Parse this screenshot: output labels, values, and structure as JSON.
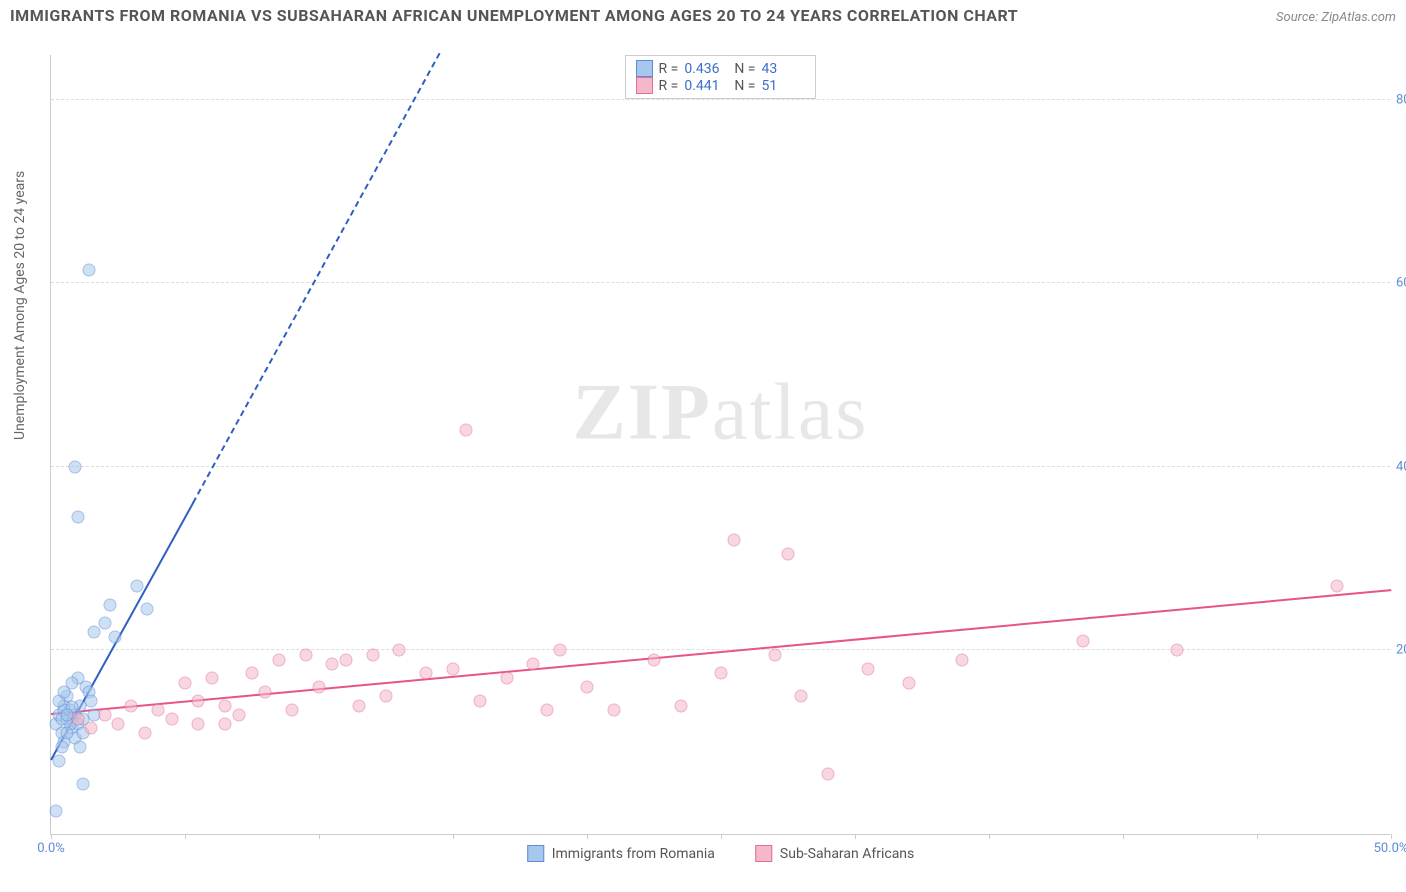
{
  "header": {
    "title": "IMMIGRANTS FROM ROMANIA VS SUBSAHARAN AFRICAN UNEMPLOYMENT AMONG AGES 20 TO 24 YEARS CORRELATION CHART",
    "source": "Source: ZipAtlas.com"
  },
  "watermark": {
    "part1": "ZIP",
    "part2": "atlas"
  },
  "chart": {
    "type": "scatter",
    "xlim": [
      0,
      50
    ],
    "ylim": [
      0,
      85
    ],
    "x_ticks": [
      0,
      5,
      10,
      15,
      20,
      25,
      30,
      35,
      40,
      45,
      50
    ],
    "x_tick_labels": {
      "0": "0.0%",
      "50": "50.0%"
    },
    "y_ticks": [
      20,
      40,
      60,
      80
    ],
    "y_tick_labels": {
      "20": "20.0%",
      "40": "40.0%",
      "60": "60.0%",
      "80": "80.0%"
    },
    "y_axis_label": "Unemployment Among Ages 20 to 24 years",
    "background_color": "#ffffff",
    "grid_color": "#dddddd",
    "axis_color": "#cccccc",
    "tick_label_color": "#5b8dd6",
    "point_radius": 6.5,
    "point_stroke_width": 1.2,
    "series": [
      {
        "key": "romania",
        "label": "Immigrants from Romania",
        "fill": "#a7c7ec",
        "stroke": "#5b8dd6",
        "fill_opacity": 0.55,
        "R": "0.436",
        "N": "43",
        "trend": {
          "x1": 0,
          "y1": 8,
          "x2": 5.3,
          "y2": 36,
          "color": "#2f5fc0",
          "width": 2,
          "dash_x2": 14.5,
          "dash_y2": 85
        },
        "points": [
          [
            0.2,
            12
          ],
          [
            0.3,
            13
          ],
          [
            0.4,
            11
          ],
          [
            0.5,
            14
          ],
          [
            0.6,
            12.5
          ],
          [
            0.5,
            10
          ],
          [
            0.7,
            13.5
          ],
          [
            0.8,
            11.5
          ],
          [
            0.9,
            13
          ],
          [
            1.0,
            12
          ],
          [
            0.6,
            15
          ],
          [
            1.1,
            14
          ],
          [
            1.2,
            12.5
          ],
          [
            0.4,
            9.5
          ],
          [
            0.3,
            8
          ],
          [
            1.3,
            16
          ],
          [
            1.4,
            15.5
          ],
          [
            1.0,
            17
          ],
          [
            1.5,
            14.5
          ],
          [
            0.8,
            16.5
          ],
          [
            1.6,
            13
          ],
          [
            0.2,
            2.5
          ],
          [
            1.2,
            5.5
          ],
          [
            1.6,
            22
          ],
          [
            2.0,
            23
          ],
          [
            2.2,
            25
          ],
          [
            2.4,
            21.5
          ],
          [
            3.2,
            27
          ],
          [
            3.6,
            24.5
          ],
          [
            1.0,
            34.5
          ],
          [
            0.9,
            40
          ],
          [
            1.4,
            61.5
          ],
          [
            0.7,
            12
          ],
          [
            0.9,
            10.5
          ],
          [
            0.5,
            13.5
          ],
          [
            1.1,
            9.5
          ],
          [
            0.6,
            11
          ],
          [
            0.3,
            14.5
          ],
          [
            0.4,
            12.5
          ],
          [
            0.8,
            13.8
          ],
          [
            0.5,
            15.5
          ],
          [
            1.2,
            11
          ],
          [
            0.6,
            13
          ]
        ]
      },
      {
        "key": "subsaharan",
        "label": "Sub-Saharan Africans",
        "fill": "#f4b8c9",
        "stroke": "#e36f97",
        "fill_opacity": 0.55,
        "R": "0.441",
        "N": "51",
        "trend": {
          "x1": 0,
          "y1": 13,
          "x2": 50,
          "y2": 26.5,
          "color": "#e7548a",
          "width": 2
        },
        "points": [
          [
            1.0,
            12.5
          ],
          [
            1.5,
            11.5
          ],
          [
            2.0,
            13
          ],
          [
            2.5,
            12
          ],
          [
            3.0,
            14
          ],
          [
            3.5,
            11
          ],
          [
            4.0,
            13.5
          ],
          [
            4.5,
            12.5
          ],
          [
            5.0,
            16.5
          ],
          [
            5.5,
            12
          ],
          [
            6.0,
            17
          ],
          [
            6.5,
            14
          ],
          [
            7.0,
            13
          ],
          [
            7.5,
            17.5
          ],
          [
            8.0,
            15.5
          ],
          [
            8.5,
            19
          ],
          [
            9.0,
            13.5
          ],
          [
            9.5,
            19.5
          ],
          [
            10.0,
            16
          ],
          [
            10.5,
            18.5
          ],
          [
            11.0,
            19
          ],
          [
            11.5,
            14
          ],
          [
            12.0,
            19.5
          ],
          [
            12.5,
            15
          ],
          [
            13.0,
            20
          ],
          [
            14.0,
            17.5
          ],
          [
            15.0,
            18
          ],
          [
            15.5,
            44
          ],
          [
            16.0,
            14.5
          ],
          [
            17.0,
            17
          ],
          [
            18.0,
            18.5
          ],
          [
            18.5,
            13.5
          ],
          [
            19.0,
            20
          ],
          [
            20.0,
            16
          ],
          [
            21.0,
            13.5
          ],
          [
            22.5,
            19
          ],
          [
            23.5,
            14
          ],
          [
            25.0,
            17.5
          ],
          [
            25.5,
            32
          ],
          [
            27.0,
            19.5
          ],
          [
            27.5,
            30.5
          ],
          [
            28.0,
            15
          ],
          [
            29.0,
            6.5
          ],
          [
            30.5,
            18
          ],
          [
            32.0,
            16.5
          ],
          [
            34.0,
            19
          ],
          [
            38.5,
            21
          ],
          [
            42.0,
            20
          ],
          [
            48.0,
            27
          ],
          [
            5.5,
            14.5
          ],
          [
            6.5,
            12
          ]
        ]
      }
    ],
    "legend_bottom": [
      {
        "series": "romania"
      },
      {
        "series": "subsaharan"
      }
    ]
  }
}
